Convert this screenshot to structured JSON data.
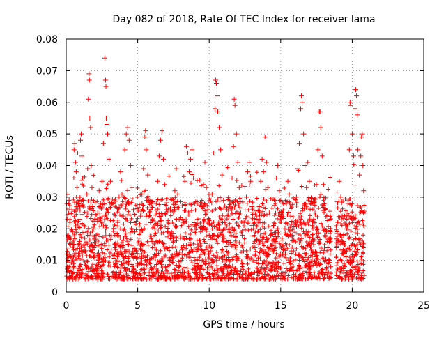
{
  "chart_data": {
    "type": "scatter",
    "title": "Day 082 of 2018, Rate Of TEC Index for receiver lama",
    "xlabel": "GPS time / hours",
    "ylabel": "ROTI / TECUs",
    "xlim": [
      0,
      25
    ],
    "ylim": [
      0,
      0.08
    ],
    "x_ticks": [
      0,
      5,
      10,
      15,
      20,
      25
    ],
    "y_ticks": [
      0,
      0.01,
      0.02,
      0.03,
      0.04,
      0.05,
      0.06,
      0.07,
      0.08
    ],
    "x_tick_labels": [
      "0",
      "5",
      "10",
      "15",
      "20",
      "25"
    ],
    "y_tick_labels": [
      "0",
      "0.01",
      "0.02",
      "0.03",
      "0.04",
      "0.05",
      "0.06",
      "0.07",
      "0.08"
    ],
    "grid": true,
    "marker": "plus",
    "color": "#ff0000",
    "series": [
      {
        "points": [
          [
            0.05,
            0.012
          ],
          [
            0.1,
            0.008
          ],
          [
            0.15,
            0.018
          ],
          [
            0.2,
            0.029
          ],
          [
            0.25,
            0.022
          ],
          [
            0.3,
            0.015
          ],
          [
            0.35,
            0.011
          ],
          [
            0.4,
            0.026
          ],
          [
            0.45,
            0.019
          ],
          [
            0.5,
            0.009
          ],
          [
            0.55,
            0.045
          ],
          [
            0.6,
            0.047
          ],
          [
            0.65,
            0.041
          ],
          [
            0.7,
            0.038
          ],
          [
            0.75,
            0.033
          ],
          [
            0.8,
            0.044
          ],
          [
            0.85,
            0.028
          ],
          [
            0.9,
            0.023
          ],
          [
            0.95,
            0.016
          ],
          [
            1.0,
            0.048
          ],
          [
            1.05,
            0.05
          ],
          [
            1.1,
            0.043
          ],
          [
            1.15,
            0.036
          ],
          [
            1.2,
            0.029
          ],
          [
            1.25,
            0.021
          ],
          [
            1.3,
            0.017
          ],
          [
            1.35,
            0.013
          ],
          [
            1.4,
            0.025
          ],
          [
            1.45,
            0.031
          ],
          [
            1.5,
            0.039
          ],
          [
            1.55,
            0.061
          ],
          [
            1.6,
            0.069
          ],
          [
            1.62,
            0.067
          ],
          [
            1.65,
            0.055
          ],
          [
            1.7,
            0.052
          ],
          [
            1.75,
            0.04
          ],
          [
            1.8,
            0.033
          ],
          [
            1.85,
            0.027
          ],
          [
            1.9,
            0.02
          ],
          [
            1.95,
            0.014
          ],
          [
            2.0,
            0.011
          ],
          [
            2.1,
            0.018
          ],
          [
            2.2,
            0.025
          ],
          [
            2.3,
            0.032
          ],
          [
            2.4,
            0.028
          ],
          [
            2.5,
            0.035
          ],
          [
            2.6,
            0.047
          ],
          [
            2.7,
            0.074
          ],
          [
            2.75,
            0.067
          ],
          [
            2.78,
            0.065
          ],
          [
            2.8,
            0.055
          ],
          [
            2.85,
            0.053
          ],
          [
            2.9,
            0.05
          ],
          [
            3.0,
            0.042
          ],
          [
            3.1,
            0.035
          ],
          [
            3.2,
            0.028
          ],
          [
            3.3,
            0.02
          ],
          [
            3.4,
            0.015
          ],
          [
            3.5,
            0.012
          ],
          [
            3.6,
            0.022
          ],
          [
            3.7,
            0.03
          ],
          [
            3.8,
            0.038
          ],
          [
            3.9,
            0.031
          ],
          [
            4.0,
            0.024
          ],
          [
            4.1,
            0.045
          ],
          [
            4.2,
            0.05
          ],
          [
            4.3,
            0.052
          ],
          [
            4.4,
            0.048
          ],
          [
            4.5,
            0.04
          ],
          [
            4.6,
            0.033
          ],
          [
            4.7,
            0.026
          ],
          [
            4.8,
            0.019
          ],
          [
            4.9,
            0.013
          ],
          [
            5.0,
            0.009
          ],
          [
            5.1,
            0.017
          ],
          [
            5.2,
            0.024
          ],
          [
            5.3,
            0.031
          ],
          [
            5.4,
            0.039
          ],
          [
            5.5,
            0.049
          ],
          [
            5.55,
            0.051
          ],
          [
            5.6,
            0.045
          ],
          [
            5.7,
            0.037
          ],
          [
            5.8,
            0.029
          ],
          [
            5.9,
            0.022
          ],
          [
            6.0,
            0.016
          ],
          [
            6.1,
            0.011
          ],
          [
            6.2,
            0.02
          ],
          [
            6.3,
            0.028
          ],
          [
            6.4,
            0.035
          ],
          [
            6.5,
            0.043
          ],
          [
            6.6,
            0.048
          ],
          [
            6.7,
            0.051
          ],
          [
            6.8,
            0.042
          ],
          [
            6.9,
            0.034
          ],
          [
            7.0,
            0.026
          ],
          [
            7.1,
            0.019
          ],
          [
            7.2,
            0.014
          ],
          [
            7.3,
            0.01
          ],
          [
            7.4,
            0.018
          ],
          [
            7.5,
            0.025
          ],
          [
            7.6,
            0.032
          ],
          [
            7.7,
            0.039
          ],
          [
            7.8,
            0.031
          ],
          [
            7.9,
            0.023
          ],
          [
            8.0,
            0.017
          ],
          [
            8.1,
            0.012
          ],
          [
            8.2,
            0.022
          ],
          [
            8.3,
            0.035
          ],
          [
            8.4,
            0.046
          ],
          [
            8.5,
            0.044
          ],
          [
            8.6,
            0.038
          ],
          [
            8.7,
            0.042
          ],
          [
            8.8,
            0.045
          ],
          [
            8.9,
            0.036
          ],
          [
            9.0,
            0.028
          ],
          [
            9.1,
            0.021
          ],
          [
            9.2,
            0.015
          ],
          [
            9.3,
            0.01
          ],
          [
            9.4,
            0.019
          ],
          [
            9.5,
            0.027
          ],
          [
            9.6,
            0.034
          ],
          [
            9.7,
            0.041
          ],
          [
            9.8,
            0.033
          ],
          [
            9.9,
            0.026
          ],
          [
            10.0,
            0.018
          ],
          [
            10.1,
            0.013
          ],
          [
            10.2,
            0.031
          ],
          [
            10.3,
            0.044
          ],
          [
            10.4,
            0.058
          ],
          [
            10.45,
            0.067
          ],
          [
            10.5,
            0.066
          ],
          [
            10.55,
            0.062
          ],
          [
            10.6,
            0.057
          ],
          [
            10.7,
            0.052
          ],
          [
            10.8,
            0.045
          ],
          [
            10.9,
            0.037
          ],
          [
            11.0,
            0.029
          ],
          [
            11.1,
            0.022
          ],
          [
            11.2,
            0.016
          ],
          [
            11.3,
            0.012
          ],
          [
            11.4,
            0.02
          ],
          [
            11.5,
            0.028
          ],
          [
            11.6,
            0.036
          ],
          [
            11.7,
            0.046
          ],
          [
            11.75,
            0.061
          ],
          [
            11.8,
            0.059
          ],
          [
            11.9,
            0.05
          ],
          [
            12.0,
            0.041
          ],
          [
            12.1,
            0.033
          ],
          [
            12.2,
            0.025
          ],
          [
            12.3,
            0.018
          ],
          [
            12.4,
            0.013
          ],
          [
            12.5,
            0.022
          ],
          [
            12.6,
            0.03
          ],
          [
            12.7,
            0.038
          ],
          [
            12.8,
            0.041
          ],
          [
            12.9,
            0.035
          ],
          [
            13.0,
            0.027
          ],
          [
            13.1,
            0.02
          ],
          [
            13.2,
            0.014
          ],
          [
            13.3,
            0.01
          ],
          [
            13.4,
            0.019
          ],
          [
            13.5,
            0.027
          ],
          [
            13.6,
            0.035
          ],
          [
            13.7,
            0.042
          ],
          [
            13.8,
            0.038
          ],
          [
            13.9,
            0.049
          ],
          [
            14.0,
            0.041
          ],
          [
            14.1,
            0.033
          ],
          [
            14.2,
            0.025
          ],
          [
            14.3,
            0.018
          ],
          [
            14.4,
            0.013
          ],
          [
            14.5,
            0.021
          ],
          [
            14.6,
            0.029
          ],
          [
            14.7,
            0.036
          ],
          [
            14.8,
            0.04
          ],
          [
            14.9,
            0.032
          ],
          [
            15.0,
            0.024
          ],
          [
            15.1,
            0.017
          ],
          [
            15.2,
            0.012
          ],
          [
            15.3,
            0.02
          ],
          [
            15.4,
            0.028
          ],
          [
            15.5,
            0.035
          ],
          [
            15.6,
            0.031
          ],
          [
            15.7,
            0.024
          ],
          [
            15.8,
            0.018
          ],
          [
            15.9,
            0.013
          ],
          [
            16.0,
            0.022
          ],
          [
            16.1,
            0.03
          ],
          [
            16.2,
            0.039
          ],
          [
            16.3,
            0.047
          ],
          [
            16.4,
            0.058
          ],
          [
            16.45,
            0.062
          ],
          [
            16.5,
            0.06
          ],
          [
            16.6,
            0.05
          ],
          [
            16.7,
            0.04
          ],
          [
            16.8,
            0.033
          ],
          [
            16.9,
            0.041
          ],
          [
            17.0,
            0.035
          ],
          [
            17.1,
            0.028
          ],
          [
            17.2,
            0.021
          ],
          [
            17.3,
            0.015
          ],
          [
            17.4,
            0.025
          ],
          [
            17.5,
            0.034
          ],
          [
            17.6,
            0.045
          ],
          [
            17.7,
            0.057
          ],
          [
            17.75,
            0.057
          ],
          [
            17.8,
            0.052
          ],
          [
            17.9,
            0.043
          ],
          [
            18.0,
            0.034
          ],
          [
            18.1,
            0.026
          ],
          [
            18.2,
            0.019
          ],
          [
            18.3,
            0.014
          ],
          [
            18.4,
            0.01
          ],
          [
            18.5,
            0.008
          ],
          [
            18.9,
            0.014
          ],
          [
            19.0,
            0.022
          ],
          [
            19.1,
            0.035
          ],
          [
            19.2,
            0.03
          ],
          [
            19.3,
            0.024
          ],
          [
            19.4,
            0.018
          ],
          [
            19.5,
            0.013
          ],
          [
            19.6,
            0.02
          ],
          [
            19.7,
            0.028
          ],
          [
            19.8,
            0.045
          ],
          [
            19.85,
            0.06
          ],
          [
            19.9,
            0.059
          ],
          [
            20.0,
            0.05
          ],
          [
            20.1,
            0.043
          ],
          [
            20.2,
            0.058
          ],
          [
            20.25,
            0.064
          ],
          [
            20.3,
            0.062
          ],
          [
            20.35,
            0.056
          ],
          [
            20.4,
            0.045
          ],
          [
            20.5,
            0.037
          ],
          [
            20.6,
            0.043
          ],
          [
            20.65,
            0.049
          ],
          [
            20.7,
            0.05
          ],
          [
            20.75,
            0.04
          ],
          [
            20.8,
            0.032
          ]
        ]
      }
    ]
  }
}
